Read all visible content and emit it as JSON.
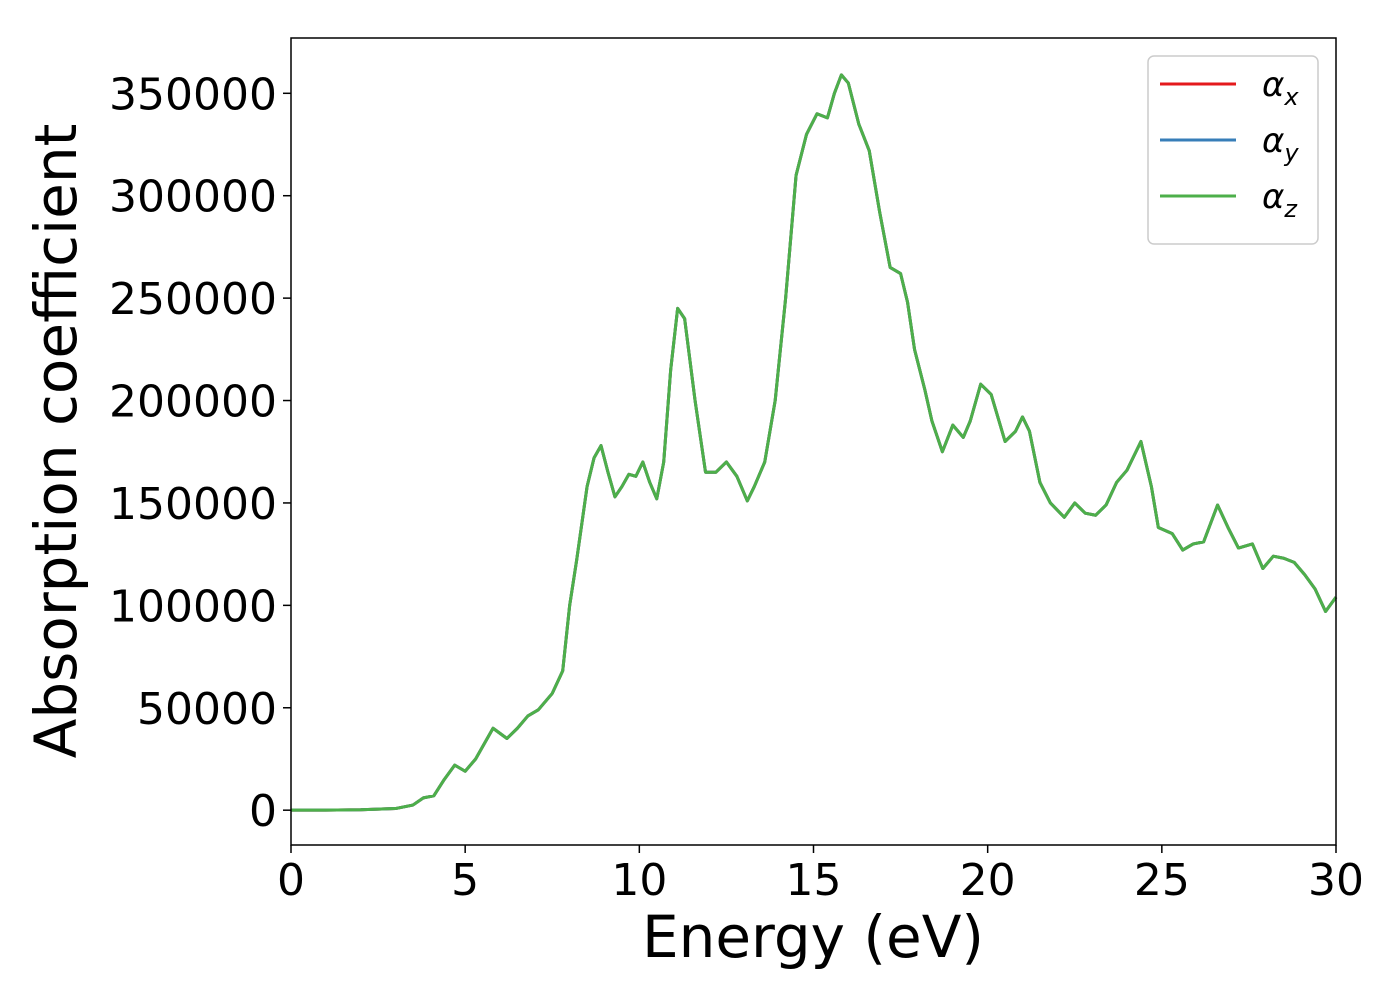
{
  "chart_data": {
    "type": "line",
    "xlabel": "Energy (eV)",
    "ylabel": "Absorption coefficient",
    "xlim": [
      0,
      30
    ],
    "ylim": [
      -17000,
      377000
    ],
    "xticks": [
      0,
      5,
      10,
      15,
      20,
      25,
      30
    ],
    "yticks": [
      0,
      50000,
      100000,
      150000,
      200000,
      250000,
      300000,
      350000
    ],
    "legend": "upper right",
    "x": [
      0,
      1,
      2,
      3,
      3.5,
      3.8,
      4.1,
      4.4,
      4.7,
      5.0,
      5.3,
      5.8,
      6.2,
      6.5,
      6.8,
      7.1,
      7.5,
      7.8,
      8.0,
      8.2,
      8.5,
      8.7,
      8.9,
      9.1,
      9.3,
      9.5,
      9.7,
      9.9,
      10.1,
      10.3,
      10.5,
      10.7,
      10.9,
      11.1,
      11.3,
      11.6,
      11.9,
      12.2,
      12.5,
      12.8,
      13.1,
      13.3,
      13.6,
      13.9,
      14.2,
      14.5,
      14.8,
      15.1,
      15.4,
      15.6,
      15.8,
      16.0,
      16.3,
      16.6,
      16.9,
      17.2,
      17.5,
      17.7,
      17.9,
      18.2,
      18.4,
      18.7,
      19.0,
      19.3,
      19.5,
      19.8,
      20.1,
      20.5,
      20.8,
      21.0,
      21.2,
      21.5,
      21.8,
      22.2,
      22.5,
      22.8,
      23.1,
      23.4,
      23.7,
      24.0,
      24.4,
      24.7,
      24.9,
      25.3,
      25.6,
      25.9,
      26.2,
      26.6,
      26.9,
      27.2,
      27.6,
      27.9,
      28.2,
      28.5,
      28.8,
      29.1,
      29.4,
      29.7,
      30
    ],
    "series": [
      {
        "name": "αx",
        "color": "#e41a1c",
        "values": [
          0,
          0,
          200,
          800,
          2500,
          6000,
          7000,
          15000,
          22000,
          19000,
          25000,
          40000,
          35000,
          40000,
          46000,
          49000,
          57000,
          68000,
          100000,
          122000,
          158000,
          172000,
          178000,
          165000,
          153000,
          158000,
          164000,
          163000,
          170000,
          160000,
          152000,
          170000,
          215000,
          245000,
          240000,
          200000,
          165000,
          165000,
          170000,
          163000,
          151000,
          158000,
          170000,
          200000,
          250000,
          310000,
          330000,
          340000,
          338000,
          350000,
          359000,
          355000,
          335000,
          322000,
          292000,
          265000,
          262000,
          248000,
          225000,
          205000,
          190000,
          175000,
          188000,
          182000,
          190000,
          208000,
          203000,
          180000,
          185000,
          192000,
          185000,
          160000,
          150000,
          143000,
          150000,
          145000,
          144000,
          149000,
          160000,
          166000,
          180000,
          158000,
          138000,
          135000,
          127000,
          130000,
          131000,
          149000,
          138000,
          128000,
          130000,
          118000,
          124000,
          123000,
          121000,
          115000,
          108000,
          97000,
          104000
        ]
      },
      {
        "name": "αy",
        "color": "#377eb8",
        "values": [
          0,
          0,
          200,
          800,
          2500,
          6000,
          7000,
          15000,
          22000,
          19000,
          25000,
          40000,
          35000,
          40000,
          46000,
          49000,
          57000,
          68000,
          100000,
          122000,
          158000,
          172000,
          178000,
          165000,
          153000,
          158000,
          164000,
          163000,
          170000,
          160000,
          152000,
          170000,
          215000,
          245000,
          240000,
          200000,
          165000,
          165000,
          170000,
          163000,
          151000,
          158000,
          170000,
          200000,
          250000,
          310000,
          330000,
          340000,
          338000,
          350000,
          359000,
          355000,
          335000,
          322000,
          292000,
          265000,
          262000,
          248000,
          225000,
          205000,
          190000,
          175000,
          188000,
          182000,
          190000,
          208000,
          203000,
          180000,
          185000,
          192000,
          185000,
          160000,
          150000,
          143000,
          150000,
          145000,
          144000,
          149000,
          160000,
          166000,
          180000,
          158000,
          138000,
          135000,
          127000,
          130000,
          131000,
          149000,
          138000,
          128000,
          130000,
          118000,
          124000,
          123000,
          121000,
          115000,
          108000,
          97000,
          104000
        ]
      },
      {
        "name": "αz",
        "color": "#4daf4a",
        "values": [
          0,
          0,
          200,
          800,
          2500,
          6000,
          7000,
          15000,
          22000,
          19000,
          25000,
          40000,
          35000,
          40000,
          46000,
          49000,
          57000,
          68000,
          100000,
          122000,
          158000,
          172000,
          178000,
          165000,
          153000,
          158000,
          164000,
          163000,
          170000,
          160000,
          152000,
          170000,
          215000,
          245000,
          240000,
          200000,
          165000,
          165000,
          170000,
          163000,
          151000,
          158000,
          170000,
          200000,
          250000,
          310000,
          330000,
          340000,
          338000,
          350000,
          359000,
          355000,
          335000,
          322000,
          292000,
          265000,
          262000,
          248000,
          225000,
          205000,
          190000,
          175000,
          188000,
          182000,
          190000,
          208000,
          203000,
          180000,
          185000,
          192000,
          185000,
          160000,
          150000,
          143000,
          150000,
          145000,
          144000,
          149000,
          160000,
          166000,
          180000,
          158000,
          138000,
          135000,
          127000,
          130000,
          131000,
          149000,
          138000,
          128000,
          130000,
          118000,
          124000,
          123000,
          121000,
          115000,
          108000,
          97000,
          104000
        ]
      }
    ]
  }
}
